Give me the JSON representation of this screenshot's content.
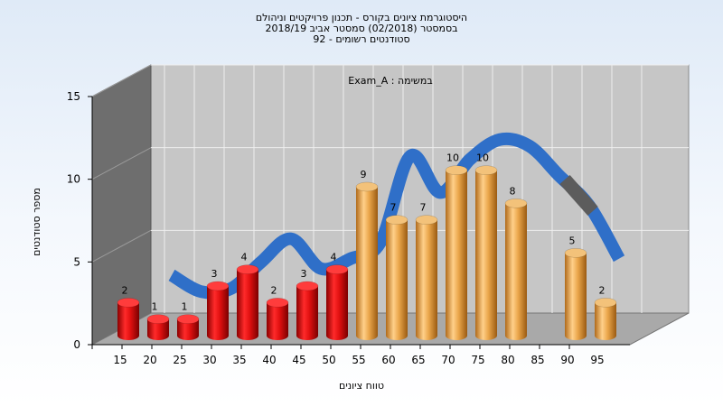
{
  "header": {
    "line1": "היסטוגרמת ציונים בקורס - תכנון פרויקטים וניהולם",
    "line2": "בסמסטר  (02/2018)  סמסטר אביב 2018/19",
    "line3": "סטודנטים רשומים - 92"
  },
  "colors": {
    "fail_bar": "#e01010",
    "pass_bar": "#e9a84a",
    "curve": "#2f6fc8",
    "curve_dark": "#5c5c5c",
    "back_wall": "#c6c6c6",
    "side_wall": "#6e6e6e",
    "floor": "#a9a9a9"
  },
  "chart_data": {
    "type": "bar",
    "annotation": "Exam_A : במשימה",
    "xlabel": "טווח ציונים",
    "ylabel": "מספר סטודנטים",
    "ylim": [
      0,
      15
    ],
    "yticks": [
      0,
      5,
      10,
      15
    ],
    "xticks": [
      "15",
      "20",
      "25",
      "30",
      "35",
      "40",
      "45",
      "50",
      "55",
      "60",
      "65",
      "70",
      "75",
      "80",
      "85",
      "90",
      "95"
    ],
    "bars": [
      {
        "x": 15,
        "value": 2,
        "status": "fail"
      },
      {
        "x": 20,
        "value": 1,
        "status": "fail"
      },
      {
        "x": 25,
        "value": 1,
        "status": "fail"
      },
      {
        "x": 30,
        "value": 3,
        "status": "fail"
      },
      {
        "x": 35,
        "value": 4,
        "status": "fail"
      },
      {
        "x": 40,
        "value": 2,
        "status": "fail"
      },
      {
        "x": 45,
        "value": 3,
        "status": "fail"
      },
      {
        "x": 50,
        "value": 4,
        "status": "fail"
      },
      {
        "x": 55,
        "value": 9,
        "status": "pass"
      },
      {
        "x": 60,
        "value": 7,
        "status": "pass"
      },
      {
        "x": 65,
        "value": 7,
        "status": "pass"
      },
      {
        "x": 70,
        "value": 10,
        "status": "pass"
      },
      {
        "x": 75,
        "value": 10,
        "status": "pass"
      },
      {
        "x": 80,
        "value": 8,
        "status": "pass"
      },
      {
        "x": 85,
        "value": 0,
        "status": "pass"
      },
      {
        "x": 90,
        "value": 5,
        "status": "pass"
      },
      {
        "x": 95,
        "value": 2,
        "status": "pass"
      }
    ],
    "curve": [
      {
        "x": 20,
        "y": 3.0
      },
      {
        "x": 25,
        "y": 2.0
      },
      {
        "x": 30,
        "y": 2.2
      },
      {
        "x": 35,
        "y": 3.8
      },
      {
        "x": 40,
        "y": 5.2
      },
      {
        "x": 45,
        "y": 3.4
      },
      {
        "x": 50,
        "y": 4.0
      },
      {
        "x": 55,
        "y": 5.0
      },
      {
        "x": 60,
        "y": 10.2
      },
      {
        "x": 65,
        "y": 8.0
      },
      {
        "x": 70,
        "y": 10.0
      },
      {
        "x": 75,
        "y": 11.2
      },
      {
        "x": 80,
        "y": 10.8
      },
      {
        "x": 85,
        "y": 9.0
      },
      {
        "x": 90,
        "y": 7.2
      },
      {
        "x": 95,
        "y": 4.0
      }
    ]
  }
}
